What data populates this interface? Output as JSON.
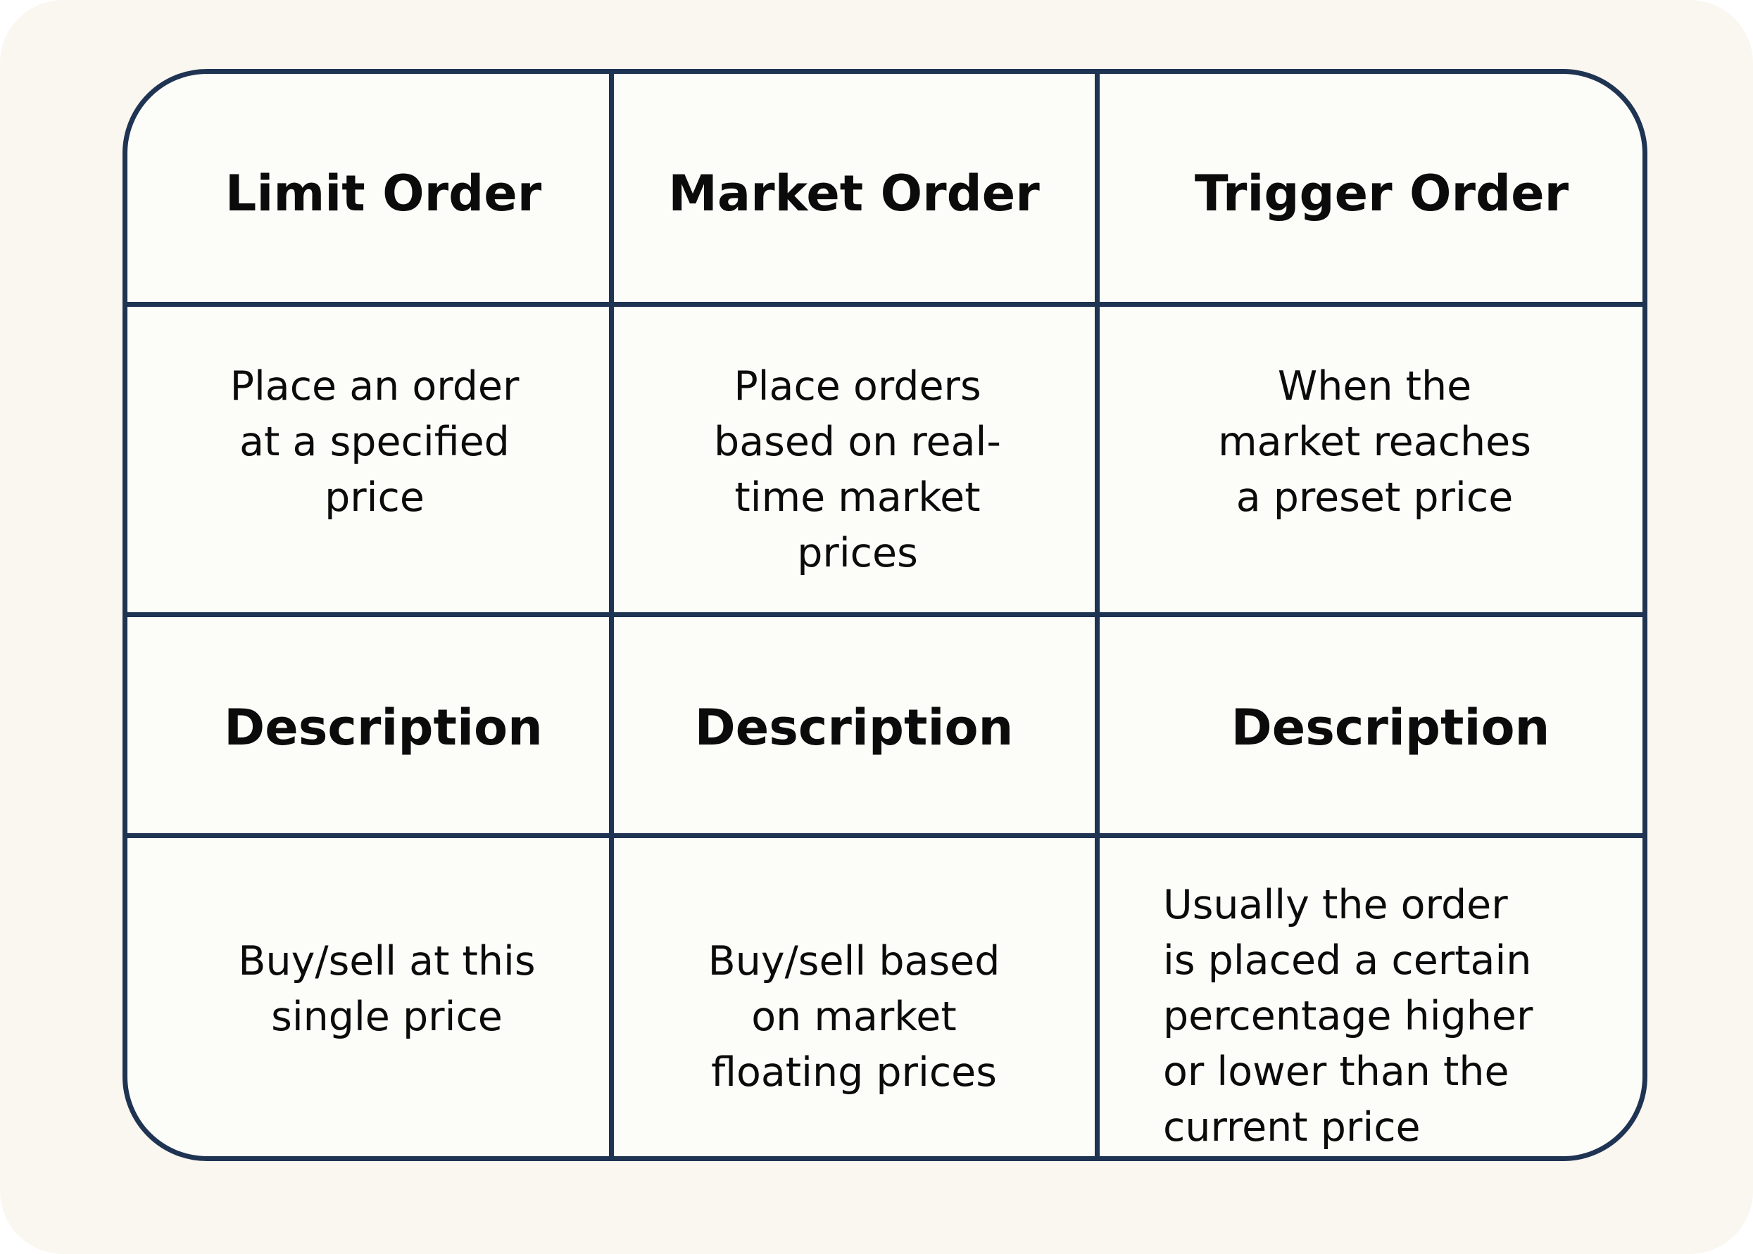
{
  "table": {
    "columns": [
      {
        "title": "Limit Order",
        "summary_lines": [
          "Place an order",
          "at a specified",
          "price"
        ],
        "description_title": "Description",
        "description_lines": [
          "Buy/sell at this",
          "single price"
        ]
      },
      {
        "title": "Market Order",
        "summary_lines": [
          "Place orders",
          "based on real-",
          "time market",
          "prices"
        ],
        "description_title": "Description",
        "description_lines": [
          "Buy/sell based",
          "on market",
          "floating prices"
        ]
      },
      {
        "title": "Trigger Order",
        "summary_lines": [
          "When the",
          "market reaches",
          "a preset price"
        ],
        "description_title": "Description",
        "description_lines": [
          "Usually the order",
          "is placed a certain",
          "percentage higher",
          "or lower than the",
          "current price"
        ]
      }
    ]
  },
  "colors": {
    "border": "#1f3352",
    "background": "#faf6f0",
    "table_fill": "#fcfcf8",
    "text": "#0b0b0b"
  }
}
